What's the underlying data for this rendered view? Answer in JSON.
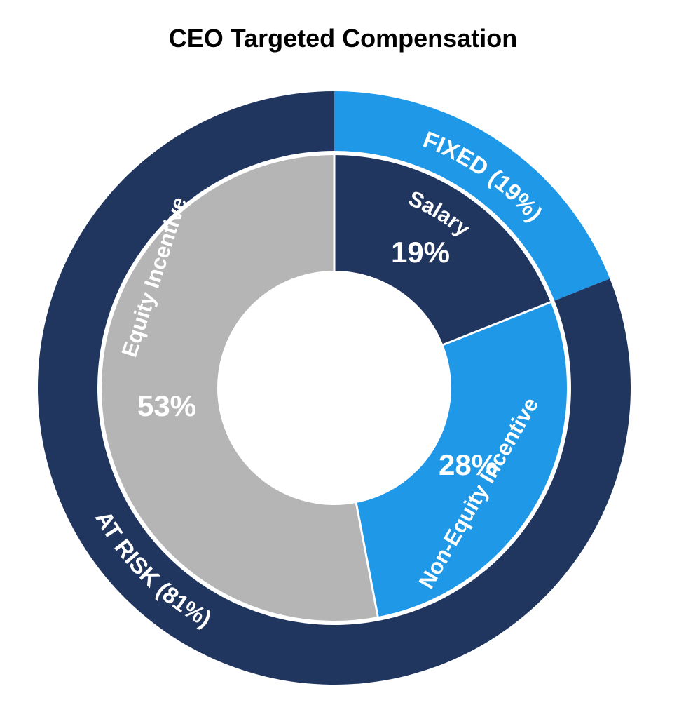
{
  "chart_data": {
    "type": "pie",
    "title": "CEO Targeted Compensation",
    "outer_ring": {
      "slices": [
        {
          "label": "FIXED (19%)",
          "value": 19,
          "color": "#1e98e7"
        },
        {
          "label": "AT RISK (81%)",
          "value": 81,
          "color": "#21365f"
        }
      ]
    },
    "inner_ring": {
      "slices": [
        {
          "label": "Salary",
          "value": 19,
          "value_label": "19%",
          "color": "#21365f"
        },
        {
          "label": "Non-Equity Incentive",
          "value": 28,
          "value_label": "28%",
          "color": "#1e98e7"
        },
        {
          "label": "Equity Incentive",
          "value": 53,
          "value_label": "53%",
          "color": "#b5b5b5"
        }
      ]
    },
    "start_angle": "12 o'clock",
    "direction": "clockwise",
    "legend": "none"
  }
}
